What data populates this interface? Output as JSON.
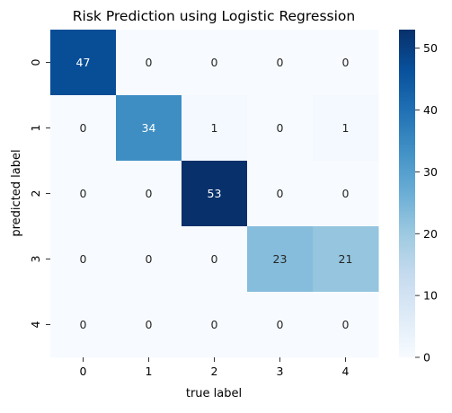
{
  "chart_data": {
    "type": "heatmap",
    "title": "Risk Prediction using Logistic Regression",
    "xlabel": "true label",
    "ylabel": "predicted label",
    "x_categories": [
      "0",
      "1",
      "2",
      "3",
      "4"
    ],
    "y_categories": [
      "0",
      "1",
      "2",
      "3",
      "4"
    ],
    "values": [
      [
        47,
        0,
        0,
        0,
        0
      ],
      [
        0,
        34,
        1,
        0,
        1
      ],
      [
        0,
        0,
        53,
        0,
        0
      ],
      [
        0,
        0,
        0,
        23,
        21
      ],
      [
        0,
        0,
        0,
        0,
        0
      ]
    ],
    "colorbar": {
      "colormap": "Blues",
      "range": [
        0,
        53
      ],
      "ticks": [
        0,
        10,
        20,
        30,
        40,
        50
      ]
    },
    "annot_colors": {
      "dark_text": "#262626",
      "light_text": "#ffffff"
    }
  }
}
